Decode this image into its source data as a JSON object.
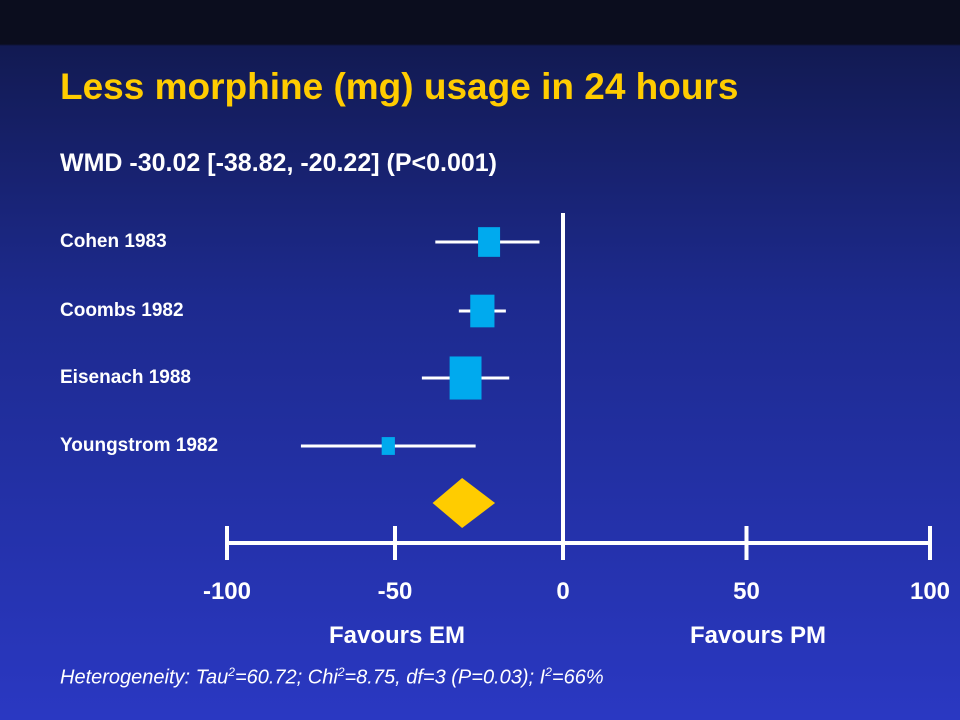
{
  "title": "Less morphine (mg) usage in 24 hours",
  "subtitle": "WMD -30.02 [-38.82, -20.22] (P<0.001)",
  "favours_left": "Favours EM",
  "favours_right": "Favours PM",
  "footnote": {
    "tau_prefix": "Heterogeneity: Tau",
    "tau_sup": "2",
    "tau_val": "=60.72; Chi",
    "chi_sup": "2",
    "chi_val": "=8.75, df=3 (P=0.03); I",
    "i_sup": "2",
    "i_val": "=66%"
  },
  "colors": {
    "title": "#ffcc00",
    "study_marker": "#00aaee",
    "pooled_diamond": "#ffcc00",
    "lines": "#ffffff"
  },
  "chart_data": {
    "type": "forest",
    "xlim": [
      -100,
      100
    ],
    "xticks": [
      -100,
      -50,
      0,
      50,
      100
    ],
    "xtick_labels": [
      "-100",
      "-50",
      "0",
      "50",
      "100"
    ],
    "studies": [
      {
        "label": "Cohen 1983",
        "estimate": -22,
        "ci_low": -38,
        "ci_high": -7,
        "weight_rel": 1.0
      },
      {
        "label": "Coombs 1982",
        "estimate": -24,
        "ci_low": -31,
        "ci_high": -17,
        "weight_rel": 1.1
      },
      {
        "label": "Eisenach 1988",
        "estimate": -29,
        "ci_low": -42,
        "ci_high": -16,
        "weight_rel": 1.45
      },
      {
        "label": "Youngstrom 1982",
        "estimate": -52,
        "ci_low": -78,
        "ci_high": -26,
        "weight_rel": 0.6
      }
    ],
    "pooled": {
      "estimate": -30.02,
      "ci_low": -38.82,
      "ci_high": -20.22
    }
  }
}
